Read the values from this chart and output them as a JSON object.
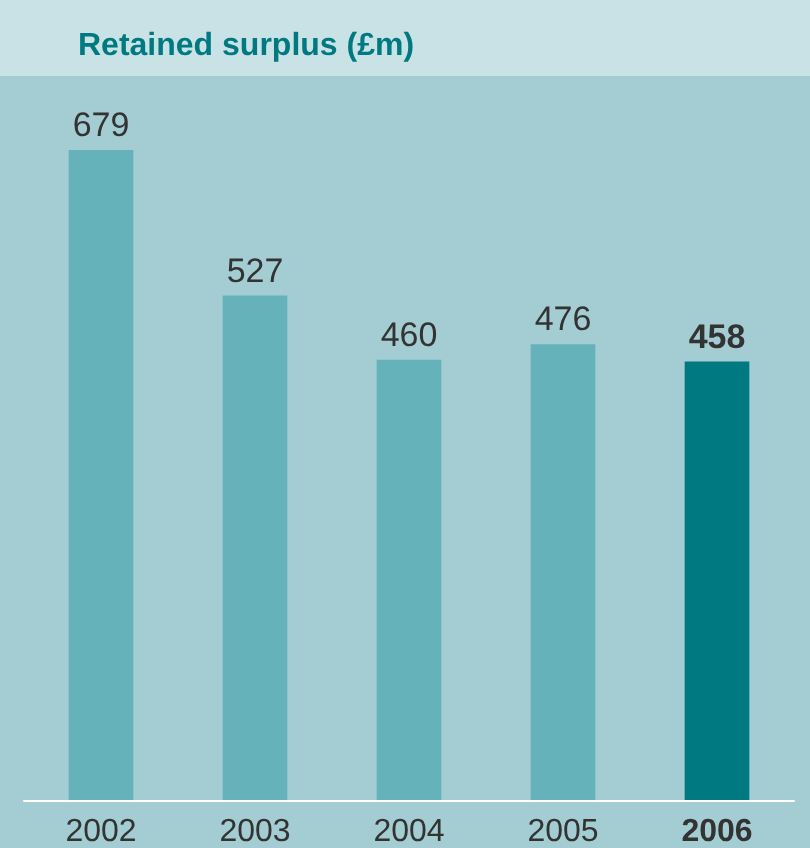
{
  "chart_data": {
    "type": "bar",
    "title": "Retained surplus (£m)",
    "categories": [
      "2002",
      "2003",
      "2004",
      "2005",
      "2006"
    ],
    "values": [
      679,
      527,
      460,
      476,
      458
    ],
    "colors": [
      "#66b2bb",
      "#66b2bb",
      "#66b2bb",
      "#66b2bb",
      "#007a80"
    ],
    "data_labels": true
  }
}
